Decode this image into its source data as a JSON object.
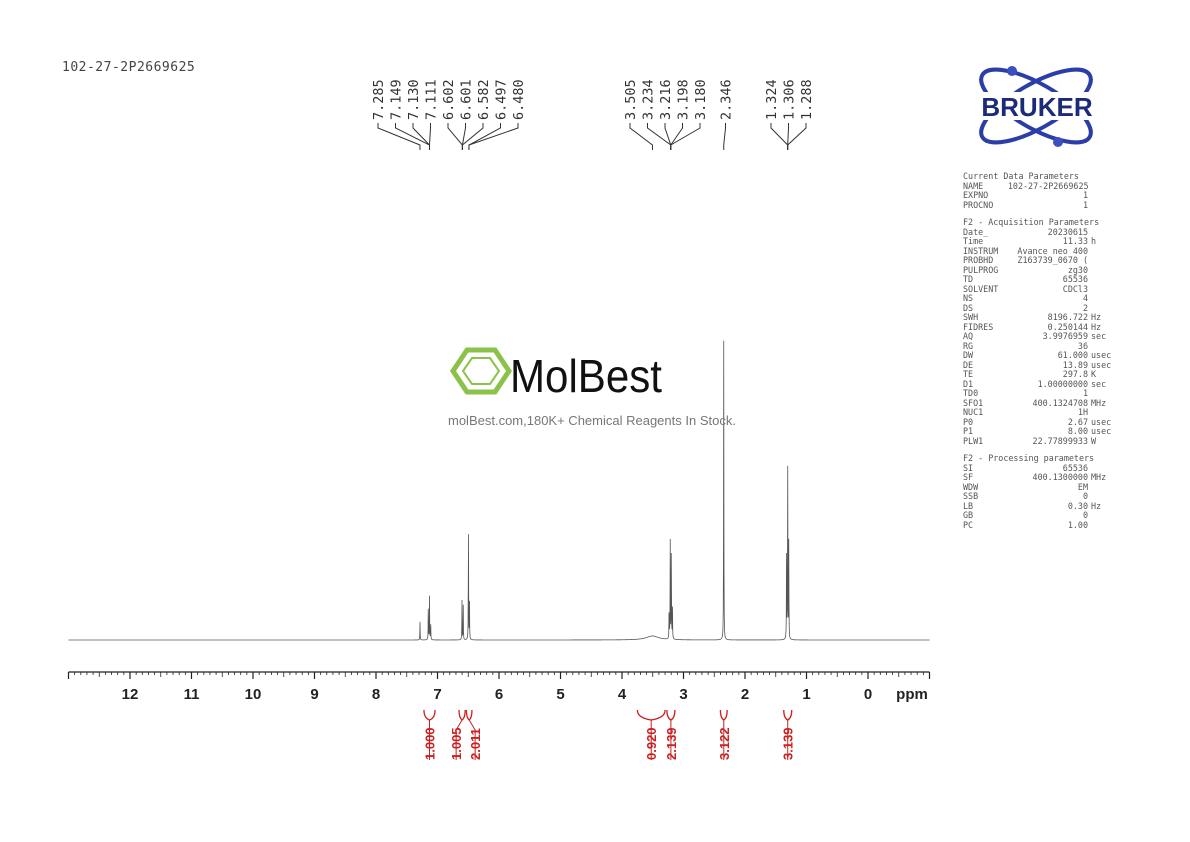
{
  "sample_name": "102-27-2P2669625",
  "brand": {
    "logo_text": "BRUKER",
    "logo_color": "#1b2a7a",
    "accent": "#3a4fc0"
  },
  "watermark": {
    "name": "MolBest",
    "tagline": "molBest.com,180K+ Chemical Reagents In Stock.",
    "color": "#8bc34a"
  },
  "params": {
    "sections": [
      {
        "title": "Current Data Parameters",
        "rows": [
          [
            "NAME",
            "102-27-2P2669625",
            ""
          ],
          [
            "EXPNO",
            "1",
            ""
          ],
          [
            "PROCNO",
            "1",
            ""
          ]
        ]
      },
      {
        "title": "F2 - Acquisition Parameters",
        "rows": [
          [
            "Date_",
            "20230615",
            ""
          ],
          [
            "Time",
            "11.33",
            "h"
          ],
          [
            "INSTRUM",
            "Avance neo 400",
            ""
          ],
          [
            "PROBHD",
            "Z163739_0670 (",
            ""
          ],
          [
            "PULPROG",
            "zg30",
            ""
          ],
          [
            "TD",
            "65536",
            ""
          ],
          [
            "SOLVENT",
            "CDCl3",
            ""
          ],
          [
            "NS",
            "4",
            ""
          ],
          [
            "DS",
            "2",
            ""
          ],
          [
            "SWH",
            "8196.722",
            "Hz"
          ],
          [
            "FIDRES",
            "0.250144",
            "Hz"
          ],
          [
            "AQ",
            "3.9976959",
            "sec"
          ],
          [
            "RG",
            "36",
            ""
          ],
          [
            "DW",
            "61.000",
            "usec"
          ],
          [
            "DE",
            "13.89",
            "usec"
          ],
          [
            "TE",
            "297.8",
            "K"
          ],
          [
            "D1",
            "1.00000000",
            "sec"
          ],
          [
            "TD0",
            "1",
            ""
          ],
          [
            "SFO1",
            "400.1324708",
            "MHz"
          ],
          [
            "NUC1",
            "1H",
            ""
          ],
          [
            "P0",
            "2.67",
            "usec"
          ],
          [
            "P1",
            "8.00",
            "usec"
          ],
          [
            "PLW1",
            "22.77899933",
            "W"
          ]
        ]
      },
      {
        "title": "F2 - Processing parameters",
        "rows": [
          [
            "SI",
            "65536",
            ""
          ],
          [
            "SF",
            "400.1300000",
            "MHz"
          ],
          [
            "WDW",
            "EM",
            ""
          ],
          [
            "SSB",
            "0",
            ""
          ],
          [
            "LB",
            "0.30",
            "Hz"
          ],
          [
            "GB",
            "0",
            ""
          ],
          [
            "PC",
            "1.00",
            ""
          ]
        ]
      }
    ]
  },
  "chart_data": {
    "type": "line",
    "xlabel": "ppm",
    "xlim": [
      13,
      -1
    ],
    "xticks": [
      12,
      11,
      10,
      9,
      8,
      7,
      6,
      5,
      4,
      3,
      2,
      1,
      0
    ],
    "peaks": [
      {
        "ppm": 7.285,
        "intensity": 6
      },
      {
        "ppm": 7.149,
        "intensity": 13
      },
      {
        "ppm": 7.13,
        "intensity": 14
      },
      {
        "ppm": 7.111,
        "intensity": 6
      },
      {
        "ppm": 6.602,
        "intensity": 12
      },
      {
        "ppm": 6.601,
        "intensity": 1
      },
      {
        "ppm": 6.582,
        "intensity": 12
      },
      {
        "ppm": 6.497,
        "intensity": 40
      },
      {
        "ppm": 6.48,
        "intensity": 12
      },
      {
        "ppm": 3.505,
        "intensity": 1.3,
        "broad": true
      },
      {
        "ppm": 3.234,
        "intensity": 12
      },
      {
        "ppm": 3.216,
        "intensity": 33
      },
      {
        "ppm": 3.198,
        "intensity": 33
      },
      {
        "ppm": 3.18,
        "intensity": 12
      },
      {
        "ppm": 2.346,
        "intensity": 100
      },
      {
        "ppm": 1.324,
        "intensity": 33
      },
      {
        "ppm": 1.306,
        "intensity": 66
      },
      {
        "ppm": 1.288,
        "intensity": 33
      }
    ],
    "peak_label_groups": [
      {
        "labels": [
          "7.285",
          "7.149",
          "7.130",
          "7.111",
          "6.602",
          "6.601",
          "6.582",
          "6.497",
          "6.480"
        ]
      },
      {
        "labels": [
          "3.505",
          "3.234",
          "3.216",
          "3.198",
          "3.180",
          "2.346"
        ]
      },
      {
        "labels": [
          "1.324",
          "1.306",
          "1.288"
        ]
      }
    ],
    "integrals": [
      {
        "from": 7.22,
        "to": 7.04,
        "value": "1.000"
      },
      {
        "from": 6.65,
        "to": 6.55,
        "value": "1.005"
      },
      {
        "from": 6.53,
        "to": 6.44,
        "value": "2.011"
      },
      {
        "from": 3.75,
        "to": 3.3,
        "value": "0.920"
      },
      {
        "from": 3.27,
        "to": 3.14,
        "value": "2.139"
      },
      {
        "from": 2.4,
        "to": 2.29,
        "value": "3.122"
      },
      {
        "from": 1.37,
        "to": 1.24,
        "value": "3.139"
      }
    ],
    "integral_color": "#cc1f1f",
    "trace_color": "#555555"
  }
}
